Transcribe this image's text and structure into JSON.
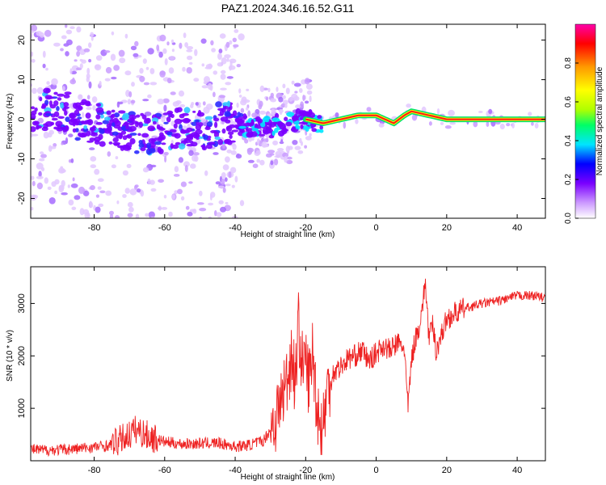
{
  "title": "PAZ1.2024.346.16.52.G11",
  "chart_data": [
    {
      "type": "heatmap",
      "xlabel": "Height of straight line (km)",
      "ylabel": "Frequency (Hz)",
      "xlim": [
        -98,
        48
      ],
      "ylim": [
        -25,
        24
      ],
      "x_ticks": [
        -80,
        -60,
        -40,
        -20,
        0,
        20,
        40
      ],
      "y_ticks": [
        -20,
        -10,
        0,
        10,
        20
      ],
      "colorbar": {
        "label": "Normalized spectral amplitude",
        "range": [
          0,
          1
        ],
        "ticks": [
          "0.0",
          "0.2",
          "0.4",
          "0.6",
          "0.8"
        ],
        "colors": [
          "#ffffff",
          "#cc99ff",
          "#7a00ff",
          "#0000ff",
          "#00e5ff",
          "#00ff66",
          "#b0ff00",
          "#ffff00",
          "#ff9900",
          "#ff0000",
          "#ff00aa"
        ]
      },
      "ridge": [
        {
          "x": -98,
          "f": 1
        },
        {
          "x": -92,
          "f": 3
        },
        {
          "x": -88,
          "f": 2
        },
        {
          "x": -85,
          "f": 0
        },
        {
          "x": -80,
          "f": -1
        },
        {
          "x": -75,
          "f": -2
        },
        {
          "x": -70,
          "f": -3
        },
        {
          "x": -65,
          "f": -4
        },
        {
          "x": -60,
          "f": -3
        },
        {
          "x": -55,
          "f": -2
        },
        {
          "x": -50,
          "f": -3
        },
        {
          "x": -45,
          "f": -1
        },
        {
          "x": -40,
          "f": -1
        },
        {
          "x": -35,
          "f": -2
        },
        {
          "x": -30,
          "f": -2
        },
        {
          "x": -25,
          "f": -1
        },
        {
          "x": -20,
          "f": 0
        },
        {
          "x": -15,
          "f": -1
        },
        {
          "x": -10,
          "f": 0
        },
        {
          "x": -5,
          "f": 1
        },
        {
          "x": 0,
          "f": 1
        },
        {
          "x": 5,
          "f": -1
        },
        {
          "x": 8,
          "f": 1
        },
        {
          "x": 10,
          "f": 2
        },
        {
          "x": 15,
          "f": 1
        },
        {
          "x": 20,
          "f": 0
        },
        {
          "x": 25,
          "f": 0
        },
        {
          "x": 48,
          "f": 0
        }
      ]
    },
    {
      "type": "line",
      "xlabel": "Height of straight line (km)",
      "ylabel": "SNR (10 * v/v)",
      "xlim": [
        -98,
        48
      ],
      "ylim": [
        0,
        3700
      ],
      "x_ticks": [
        -80,
        -60,
        -40,
        -20,
        0,
        20,
        40
      ],
      "y_ticks": [
        1000,
        2000,
        3000
      ],
      "color": "#ee2222",
      "series": [
        {
          "x": [
            -98,
            -95,
            -90,
            -85,
            -80,
            -75,
            -72,
            -70,
            -68,
            -66,
            -64,
            -60,
            -55,
            -50,
            -45,
            -40,
            -36,
            -32,
            -30,
            -28,
            -26,
            -25,
            -24,
            -23,
            -22,
            -21,
            -20,
            -19,
            -18,
            -17,
            -16,
            -15,
            -14,
            -12,
            -10,
            -8,
            -6,
            -4,
            -2,
            0,
            2,
            4,
            6,
            8,
            9,
            10,
            11,
            12,
            13,
            14,
            15,
            16,
            17,
            18,
            19,
            20,
            22,
            25,
            30,
            35,
            40,
            45,
            48
          ],
          "y": [
            220,
            200,
            210,
            230,
            260,
            300,
            420,
            500,
            600,
            520,
            450,
            360,
            320,
            330,
            340,
            270,
            300,
            380,
            600,
            900,
            1400,
            1600,
            2100,
            1500,
            2600,
            1800,
            1900,
            1500,
            2100,
            1200,
            700,
            700,
            1300,
            1700,
            1800,
            1950,
            2000,
            2100,
            1900,
            2050,
            2200,
            2100,
            2250,
            2150,
            1000,
            1900,
            2300,
            2500,
            2900,
            3400,
            2300,
            2600,
            2100,
            2300,
            2500,
            2700,
            2800,
            2900,
            3000,
            3050,
            3150,
            3150,
            3100
          ]
        }
      ]
    }
  ]
}
